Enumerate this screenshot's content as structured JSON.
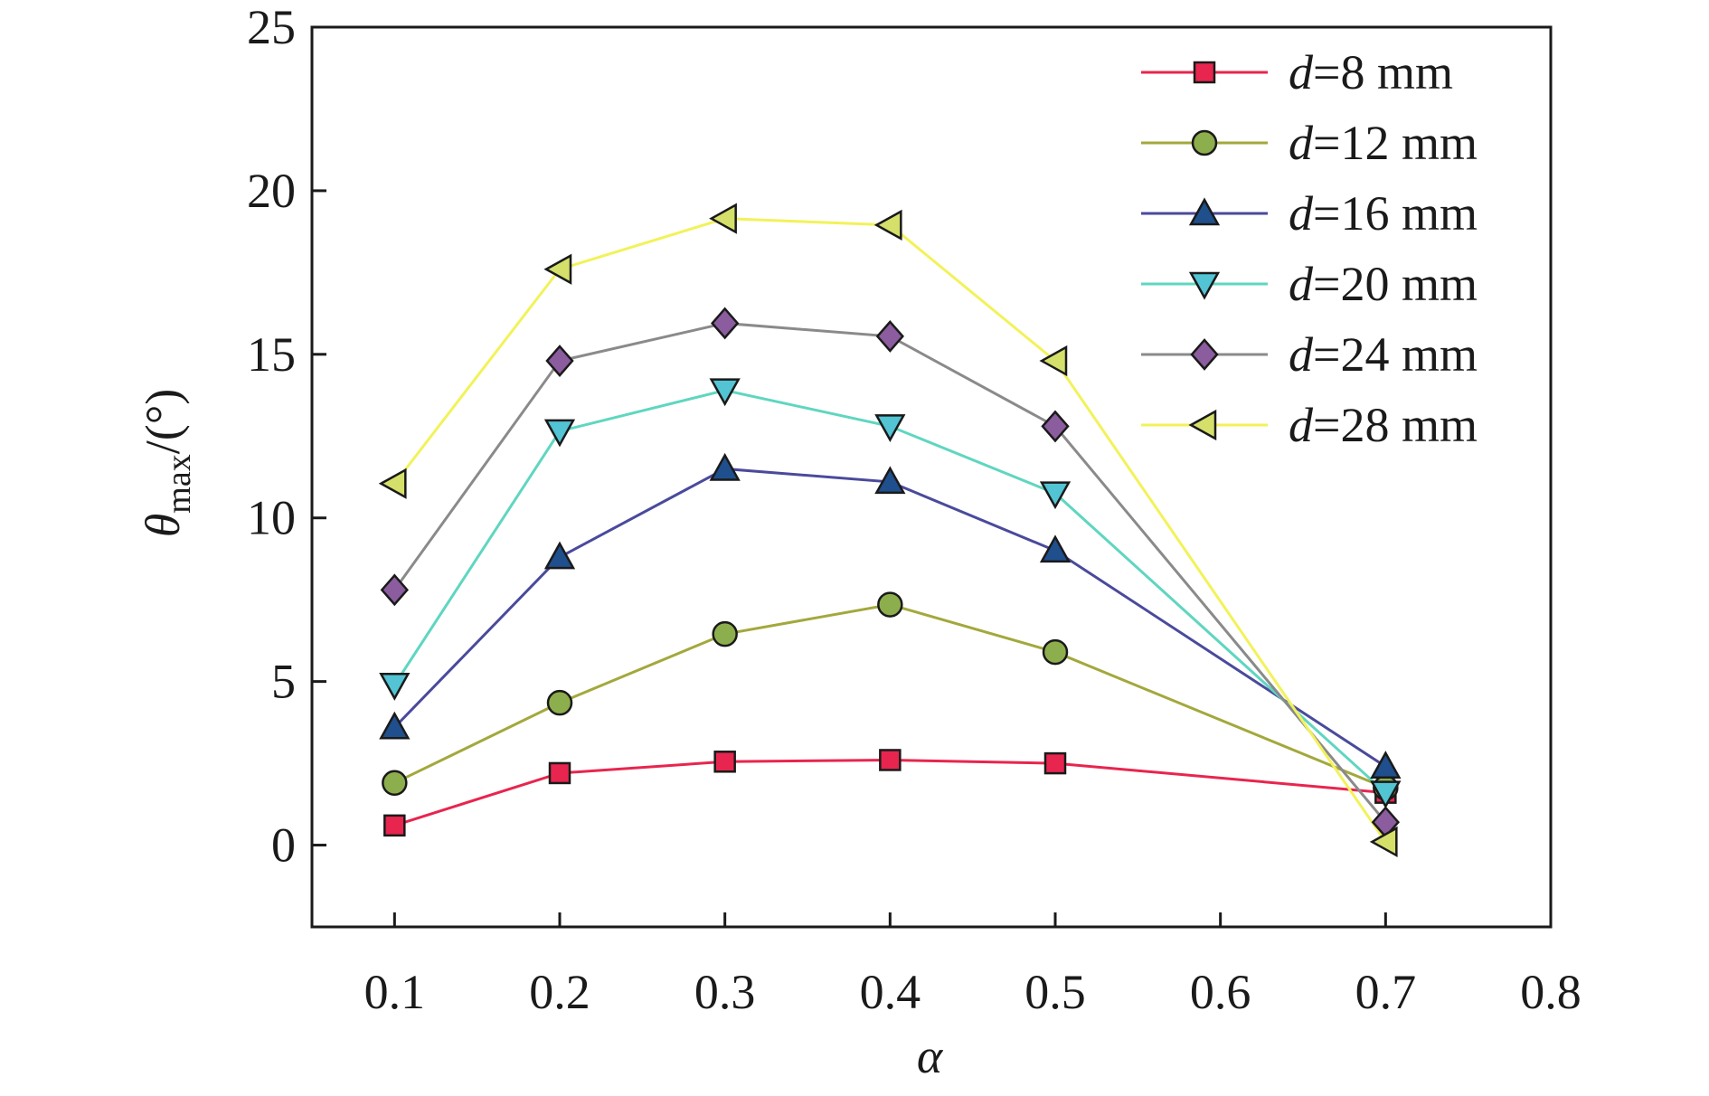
{
  "chart_data": {
    "type": "line",
    "xlabel": "α",
    "ylabel": {
      "symbol": "θ",
      "subscript": "max",
      "unit": "/(°)"
    },
    "xlim": [
      0.05,
      0.8
    ],
    "ylim": [
      -2.5,
      25
    ],
    "xticks": [
      "0.1",
      "0.2",
      "0.3",
      "0.4",
      "0.5",
      "0.6",
      "0.7",
      "0.8"
    ],
    "xtick_values": [
      0.1,
      0.2,
      0.3,
      0.4,
      0.5,
      0.6,
      0.7,
      0.8
    ],
    "yticks": [
      "0",
      "5",
      "10",
      "15",
      "20",
      "25"
    ],
    "ytick_values": [
      0,
      5,
      10,
      15,
      20,
      25
    ],
    "grid": false,
    "legend_position": "top-right",
    "x": [
      0.1,
      0.2,
      0.3,
      0.4,
      0.5,
      0.7
    ],
    "series": [
      {
        "name": "d=8 mm",
        "var": "d",
        "rest": "=8 mm",
        "marker": "square",
        "color": "#e8254e",
        "fill": "#e8254e",
        "values": [
          0.6,
          2.2,
          2.55,
          2.6,
          2.5,
          1.6
        ]
      },
      {
        "name": "d=12 mm",
        "var": "d",
        "rest": "=12 mm",
        "marker": "circle",
        "color": "#a3a83c",
        "fill": "#8dae4c",
        "values": [
          1.9,
          4.35,
          6.45,
          7.35,
          5.9,
          1.75
        ]
      },
      {
        "name": "d=16 mm",
        "var": "d",
        "rest": "=16 mm",
        "marker": "triangle-up",
        "color": "#4a4a9c",
        "fill": "#1f4f8c",
        "values": [
          3.6,
          8.8,
          11.5,
          11.1,
          9.0,
          2.4
        ]
      },
      {
        "name": "d=20 mm",
        "var": "d",
        "rest": "=20 mm",
        "marker": "triangle-down",
        "color": "#5fd6c0",
        "fill": "#52c4d4",
        "values": [
          4.9,
          12.65,
          13.9,
          12.8,
          10.75,
          1.6
        ]
      },
      {
        "name": "d=24 mm",
        "var": "d",
        "rest": "=24 mm",
        "marker": "diamond",
        "color": "#8a8a8a",
        "fill": "#8b5c9e",
        "values": [
          7.8,
          14.8,
          15.95,
          15.55,
          12.8,
          0.7
        ]
      },
      {
        "name": "d=28 mm",
        "var": "d",
        "rest": "=28 mm",
        "marker": "triangle-left",
        "color": "#f2f25a",
        "fill": "#d4e06a",
        "values": [
          11.05,
          17.6,
          19.15,
          18.95,
          14.8,
          0.1
        ]
      }
    ]
  }
}
